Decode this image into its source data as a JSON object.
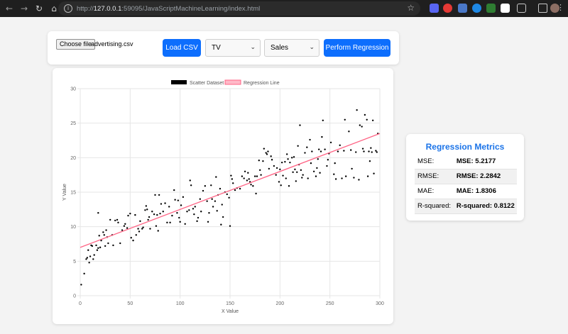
{
  "browser": {
    "url_prefix": "http://",
    "url_host": "127.0.0.1",
    "url_rest": ":59095/JavaScriptMachineLearning/index.html"
  },
  "controls": {
    "choose_file_label": "Choose file",
    "file_name": "advertising.csv",
    "load_button": "Load CSV",
    "x_select_value": "TV",
    "y_select_value": "Sales",
    "regression_button": "Perform Regression"
  },
  "colors": {
    "accent": "#0d6efd",
    "metrics_title": "#1a73e8",
    "regression_line": "#ff6384",
    "points": "#000000"
  },
  "metrics": {
    "title": "Regression Metrics",
    "rows": [
      {
        "label": "MSE:",
        "value": "MSE: 5.2177"
      },
      {
        "label": "RMSE:",
        "value": "RMSE: 2.2842"
      },
      {
        "label": "MAE:",
        "value": "MAE: 1.8306"
      },
      {
        "label": "R-squared:",
        "value": "R-squared: 0.8122"
      }
    ]
  },
  "chart_data": {
    "type": "scatter",
    "xlabel": "X Value",
    "ylabel": "Y Value",
    "xlim": [
      0,
      300
    ],
    "ylim": [
      0,
      30
    ],
    "xticks": [
      0,
      50,
      100,
      150,
      200,
      250,
      300
    ],
    "yticks": [
      0,
      5,
      10,
      15,
      20,
      25,
      30
    ],
    "grid": true,
    "legend_position": "top-center",
    "legend": [
      "Scatter Dataset",
      "Regression Line"
    ],
    "regression_line": {
      "x": [
        0,
        300
      ],
      "y": [
        7.0,
        23.5
      ]
    },
    "series": [
      {
        "name": "Scatter Dataset",
        "points": [
          [
            1,
            1.6
          ],
          [
            4,
            3.2
          ],
          [
            6,
            5.3
          ],
          [
            7,
            5.5
          ],
          [
            8,
            6.6
          ],
          [
            9,
            4.8
          ],
          [
            10,
            5.7
          ],
          [
            11,
            7.3
          ],
          [
            12,
            7.2
          ],
          [
            13,
            5.3
          ],
          [
            14,
            5.9
          ],
          [
            16,
            7.3
          ],
          [
            17,
            6.6
          ],
          [
            18,
            6.9
          ],
          [
            19,
            8.7
          ],
          [
            18,
            12.0
          ],
          [
            20,
            7.0
          ],
          [
            21,
            8.0
          ],
          [
            23,
            9.2
          ],
          [
            24,
            8.8
          ],
          [
            25,
            7.2
          ],
          [
            26,
            9.5
          ],
          [
            27,
            8.5
          ],
          [
            28,
            7.6
          ],
          [
            30,
            11.0
          ],
          [
            32,
            8.8
          ],
          [
            33,
            7.3
          ],
          [
            35,
            10.9
          ],
          [
            37,
            11.0
          ],
          [
            38,
            10.6
          ],
          [
            40,
            7.6
          ],
          [
            42,
            9.5
          ],
          [
            44,
            10.1
          ],
          [
            45,
            10.4
          ],
          [
            47,
            9.8
          ],
          [
            48,
            11.6
          ],
          [
            50,
            11.9
          ],
          [
            51,
            8.4
          ],
          [
            53,
            8.0
          ],
          [
            55,
            11.7
          ],
          [
            56,
            8.8
          ],
          [
            58,
            9.7
          ],
          [
            59,
            9.3
          ],
          [
            60,
            10.8
          ],
          [
            62,
            9.7
          ],
          [
            63,
            9.9
          ],
          [
            65,
            12.4
          ],
          [
            66,
            13.0
          ],
          [
            67,
            12.5
          ],
          [
            68,
            11.0
          ],
          [
            69,
            11.4
          ],
          [
            70,
            9.7
          ],
          [
            72,
            12.2
          ],
          [
            74,
            11.8
          ],
          [
            75,
            14.6
          ],
          [
            76,
            10.1
          ],
          [
            77,
            11.7
          ],
          [
            78,
            9.4
          ],
          [
            79,
            14.6
          ],
          [
            80,
            11.9
          ],
          [
            81,
            13.3
          ],
          [
            83,
            12.2
          ],
          [
            85,
            13.4
          ],
          [
            87,
            10.6
          ],
          [
            89,
            12.9
          ],
          [
            90,
            10.6
          ],
          [
            92,
            11.6
          ],
          [
            94,
            15.3
          ],
          [
            95,
            13.9
          ],
          [
            97,
            12.0
          ],
          [
            98,
            13.8
          ],
          [
            99,
            11.3
          ],
          [
            100,
            10.7
          ],
          [
            101,
            13.1
          ],
          [
            103,
            14.3
          ],
          [
            105,
            10.4
          ],
          [
            107,
            12.2
          ],
          [
            109,
            12.4
          ],
          [
            110,
            16.7
          ],
          [
            111,
            16.0
          ],
          [
            113,
            12.6
          ],
          [
            114,
            11.8
          ],
          [
            115,
            12.9
          ],
          [
            117,
            10.8
          ],
          [
            118,
            11.3
          ],
          [
            120,
            14.0
          ],
          [
            121,
            12.2
          ],
          [
            123,
            15.2
          ],
          [
            125,
            15.9
          ],
          [
            127,
            13.7
          ],
          [
            128,
            10.7
          ],
          [
            129,
            12.0
          ],
          [
            131,
            16.0
          ],
          [
            132,
            14.0
          ],
          [
            133,
            12.9
          ],
          [
            135,
            13.7
          ],
          [
            136,
            17.2
          ],
          [
            137,
            12.3
          ],
          [
            138,
            14.6
          ],
          [
            140,
            15.5
          ],
          [
            141,
            10.3
          ],
          [
            142,
            13.2
          ],
          [
            143,
            11.4
          ],
          [
            145,
            15.0
          ],
          [
            147,
            14.7
          ],
          [
            149,
            14.2
          ],
          [
            150,
            10.1
          ],
          [
            151,
            17.4
          ],
          [
            152,
            16.9
          ],
          [
            153,
            16.3
          ],
          [
            155,
            15.3
          ],
          [
            157,
            15.6
          ],
          [
            160,
            15.5
          ],
          [
            162,
            17.3
          ],
          [
            164,
            17.0
          ],
          [
            165,
            18.0
          ],
          [
            167,
            16.7
          ],
          [
            168,
            17.8
          ],
          [
            169,
            16.9
          ],
          [
            170,
            16.5
          ],
          [
            171,
            16.1
          ],
          [
            173,
            15.9
          ],
          [
            175,
            17.3
          ],
          [
            176,
            14.8
          ],
          [
            177,
            17.3
          ],
          [
            179,
            19.6
          ],
          [
            180,
            18.2
          ],
          [
            181,
            17.5
          ],
          [
            183,
            19.5
          ],
          [
            184,
            21.3
          ],
          [
            186,
            20.7
          ],
          [
            187,
            20.5
          ],
          [
            188,
            20.9
          ],
          [
            189,
            18.4
          ],
          [
            191,
            20.2
          ],
          [
            192,
            19.7
          ],
          [
            194,
            18.8
          ],
          [
            196,
            17.5
          ],
          [
            197,
            18.5
          ],
          [
            199,
            16.5
          ],
          [
            200,
            18.3
          ],
          [
            201,
            16.0
          ],
          [
            202,
            19.3
          ],
          [
            203,
            17.4
          ],
          [
            205,
            19.4
          ],
          [
            206,
            17.0
          ],
          [
            207,
            20.5
          ],
          [
            208,
            19.8
          ],
          [
            209,
            15.9
          ],
          [
            210,
            19.3
          ],
          [
            212,
            20.0
          ],
          [
            213,
            17.9
          ],
          [
            214,
            20.1
          ],
          [
            215,
            18.3
          ],
          [
            216,
            16.6
          ],
          [
            217,
            17.9
          ],
          [
            218,
            21.7
          ],
          [
            219,
            19.0
          ],
          [
            220,
            24.7
          ],
          [
            221,
            18.2
          ],
          [
            222,
            17.1
          ],
          [
            223,
            17.5
          ],
          [
            225,
            20.7
          ],
          [
            227,
            21.5
          ],
          [
            228,
            17.0
          ],
          [
            230,
            22.6
          ],
          [
            231,
            19.2
          ],
          [
            232,
            20.9
          ],
          [
            234,
            18.0
          ],
          [
            236,
            17.3
          ],
          [
            237,
            18.5
          ],
          [
            238,
            19.8
          ],
          [
            239,
            21.2
          ],
          [
            240,
            17.8
          ],
          [
            241,
            20.9
          ],
          [
            242,
            23.0
          ],
          [
            243,
            25.4
          ],
          [
            245,
            21.2
          ],
          [
            247,
            18.8
          ],
          [
            248,
            19.7
          ],
          [
            249,
            20.6
          ],
          [
            251,
            22.2
          ],
          [
            254,
            17.6
          ],
          [
            255,
            19.2
          ],
          [
            256,
            16.9
          ],
          [
            258,
            20.9
          ],
          [
            260,
            21.8
          ],
          [
            262,
            17.0
          ],
          [
            264,
            21.0
          ],
          [
            265,
            25.5
          ],
          [
            266,
            17.3
          ],
          [
            269,
            23.8
          ],
          [
            271,
            21.1
          ],
          [
            272,
            18.4
          ],
          [
            274,
            17.1
          ],
          [
            276,
            20.8
          ],
          [
            277,
            26.9
          ],
          [
            279,
            16.8
          ],
          [
            280,
            24.7
          ],
          [
            282,
            24.5
          ],
          [
            283,
            21.3
          ],
          [
            284,
            20.9
          ],
          [
            285,
            26.2
          ],
          [
            287,
            25.5
          ],
          [
            288,
            17.3
          ],
          [
            289,
            20.9
          ],
          [
            290,
            19.5
          ],
          [
            291,
            21.4
          ],
          [
            292,
            20.8
          ],
          [
            293,
            25.4
          ],
          [
            294,
            17.7
          ],
          [
            296,
            21.0
          ],
          [
            297,
            20.8
          ],
          [
            298,
            23.5
          ]
        ]
      }
    ]
  }
}
